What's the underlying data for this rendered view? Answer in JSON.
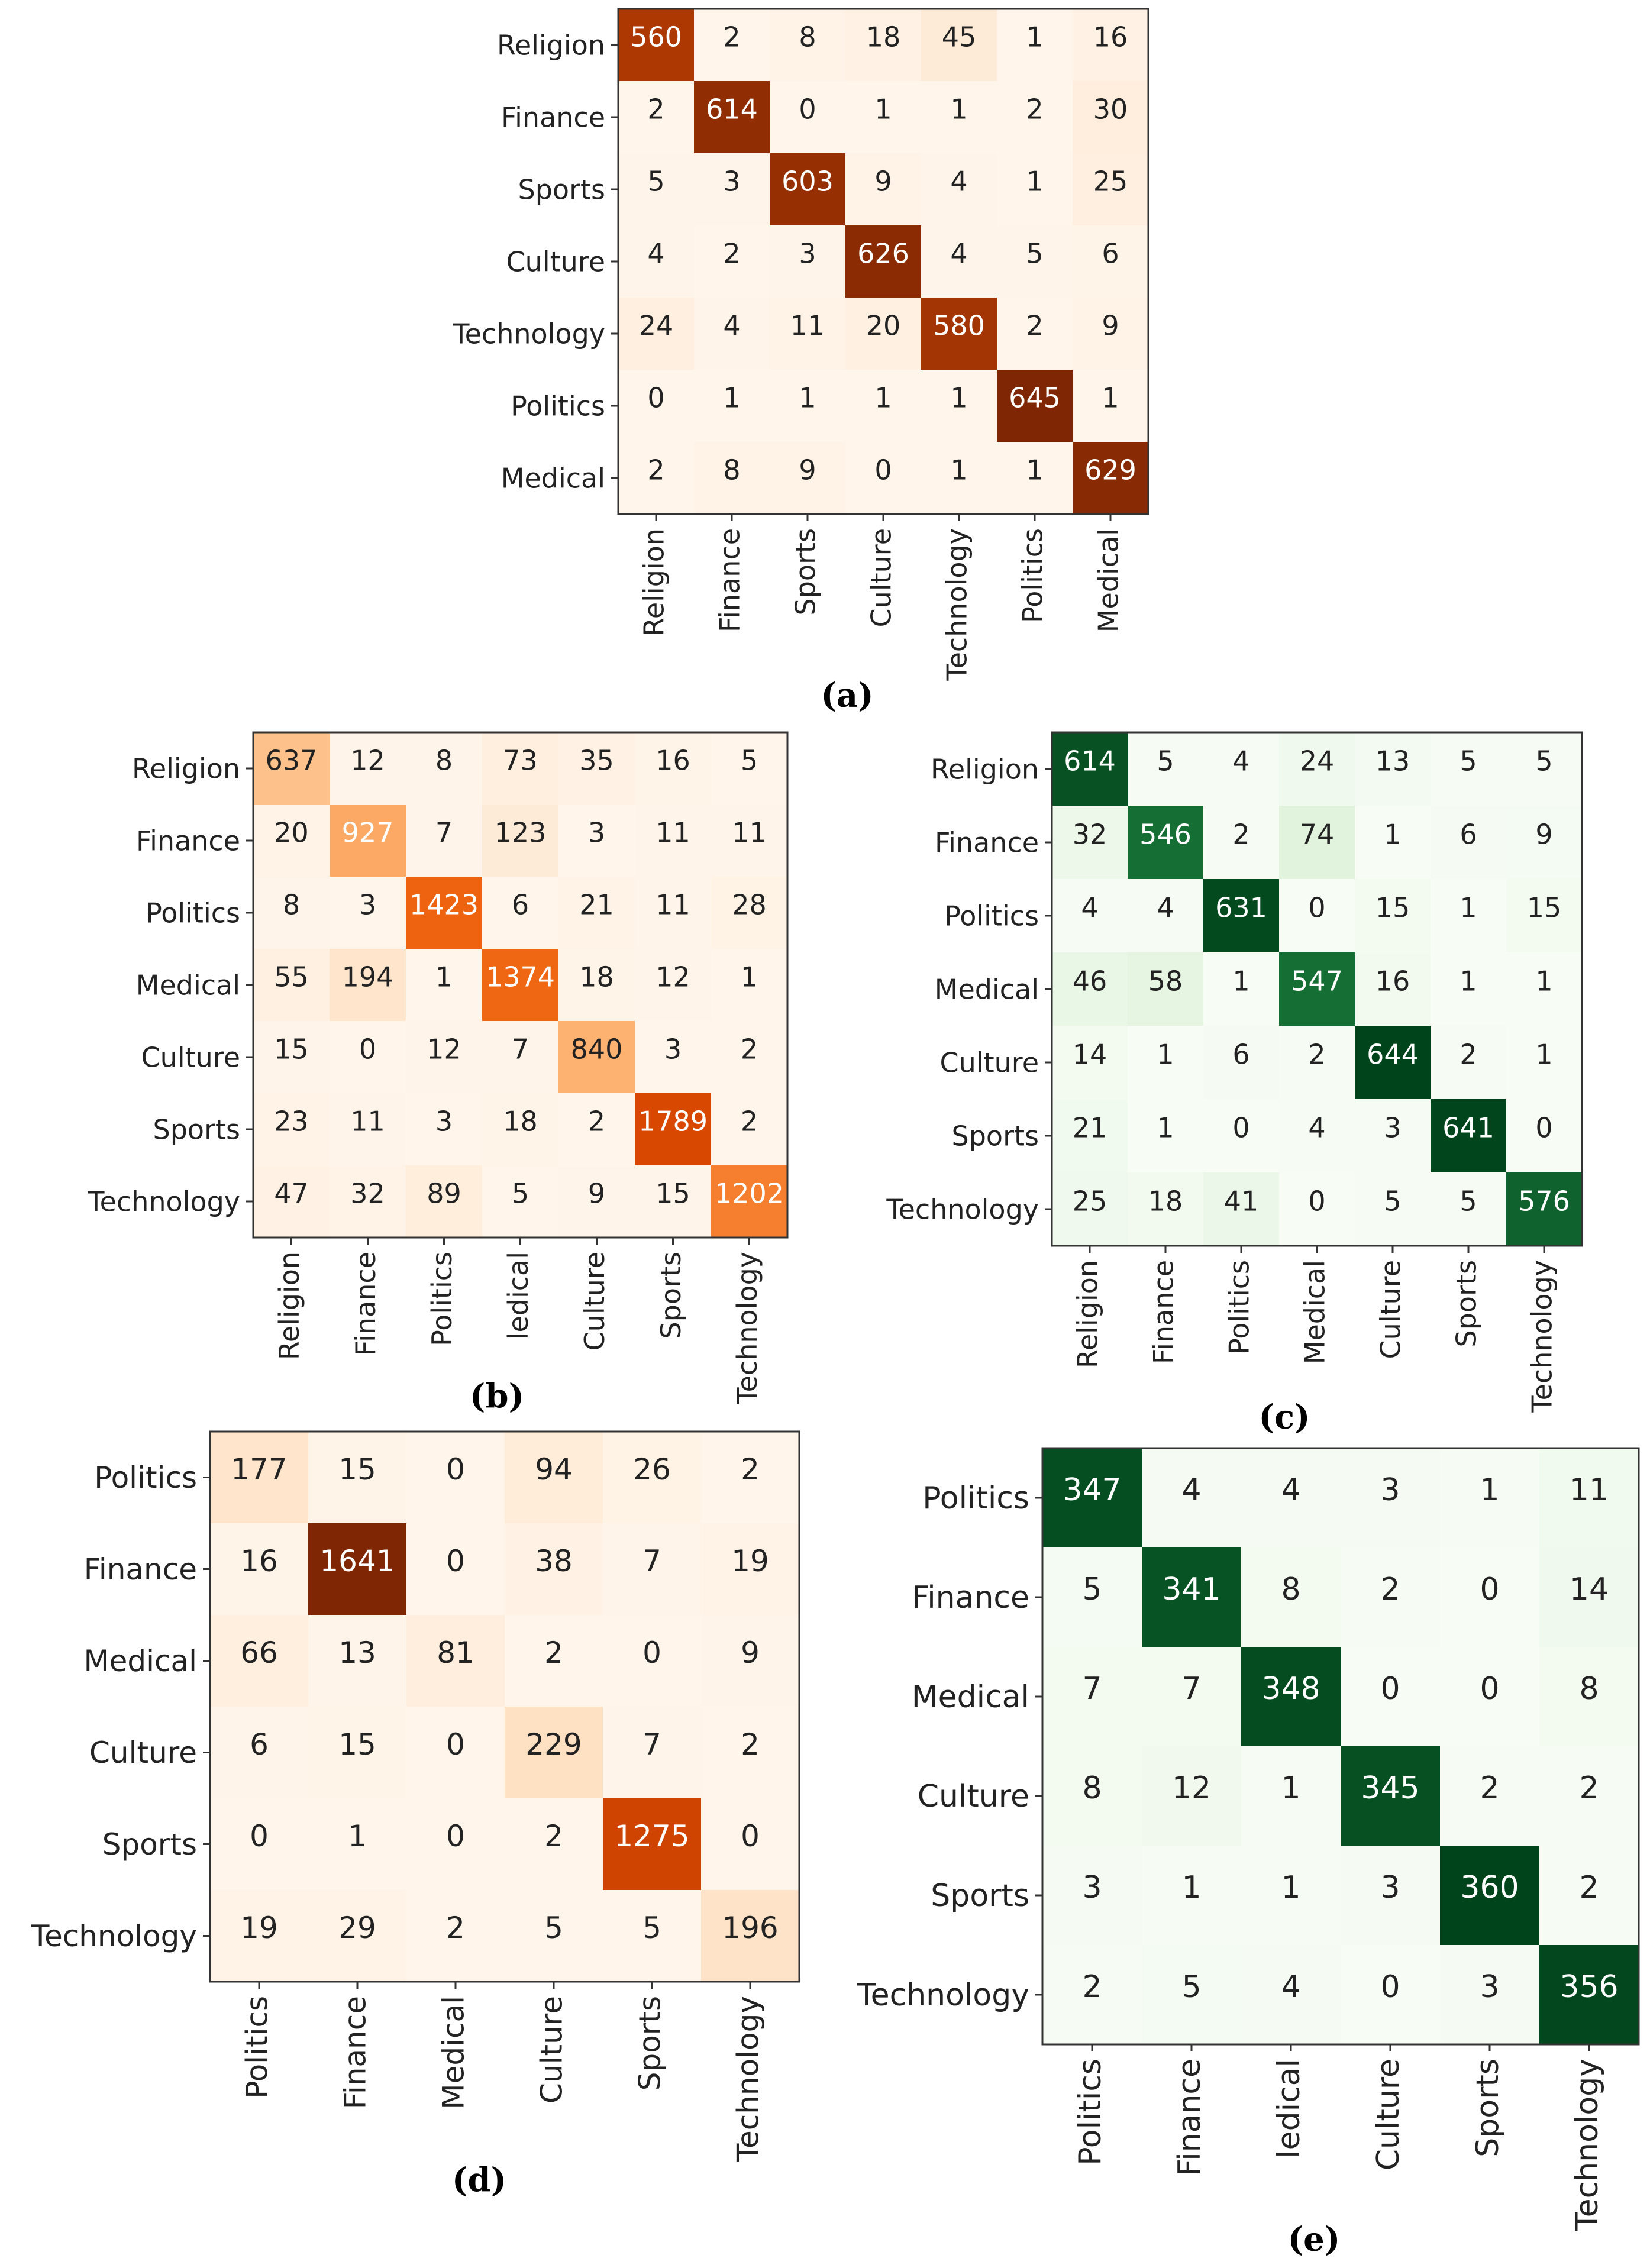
{
  "chart_data": [
    {
      "type": "heatmap",
      "caption": "(a)",
      "colormap": "orange-brown",
      "rows": [
        "Religion",
        "Finance",
        "Sports",
        "Culture",
        "Technology",
        "Politics",
        "Medical"
      ],
      "cols": [
        "Religion",
        "Finance",
        "Sports",
        "Culture",
        "Technology",
        "Politics",
        "Medical"
      ],
      "values": [
        [
          560,
          2,
          8,
          18,
          45,
          1,
          16
        ],
        [
          2,
          614,
          0,
          1,
          1,
          2,
          30
        ],
        [
          5,
          3,
          603,
          9,
          4,
          1,
          25
        ],
        [
          4,
          2,
          3,
          626,
          4,
          5,
          6
        ],
        [
          24,
          4,
          11,
          20,
          580,
          2,
          9
        ],
        [
          0,
          1,
          1,
          1,
          1,
          645,
          1
        ],
        [
          2,
          8,
          9,
          0,
          1,
          1,
          629
        ]
      ]
    },
    {
      "type": "heatmap",
      "caption": "(b)",
      "colormap": "orange",
      "rows": [
        "Religion",
        "Finance",
        "Politics",
        "Medical",
        "Culture",
        "Sports",
        "Technology"
      ],
      "cols": [
        "Religion",
        "Finance",
        "Politics",
        "ledical",
        "Culture",
        "Sports",
        "Technology"
      ],
      "values": [
        [
          637,
          12,
          8,
          73,
          35,
          16,
          5
        ],
        [
          20,
          927,
          7,
          123,
          3,
          11,
          11
        ],
        [
          8,
          3,
          1423,
          6,
          21,
          11,
          28
        ],
        [
          55,
          194,
          1,
          1374,
          18,
          12,
          1
        ],
        [
          15,
          0,
          12,
          7,
          840,
          3,
          2
        ],
        [
          23,
          11,
          3,
          18,
          2,
          1789,
          2
        ],
        [
          47,
          32,
          89,
          5,
          9,
          15,
          1202
        ]
      ]
    },
    {
      "type": "heatmap",
      "caption": "(c)",
      "colormap": "green",
      "rows": [
        "Religion",
        "Finance",
        "Politics",
        "Medical",
        "Culture",
        "Sports",
        "Technology"
      ],
      "cols": [
        "Religion",
        "Finance",
        "Politics",
        "Medical",
        "Culture",
        "Sports",
        "Technology"
      ],
      "values": [
        [
          614,
          5,
          4,
          24,
          13,
          5,
          5
        ],
        [
          32,
          546,
          2,
          74,
          1,
          6,
          9
        ],
        [
          4,
          4,
          631,
          0,
          15,
          1,
          15
        ],
        [
          46,
          58,
          1,
          547,
          16,
          1,
          1
        ],
        [
          14,
          1,
          6,
          2,
          644,
          2,
          1
        ],
        [
          21,
          1,
          0,
          4,
          3,
          641,
          0
        ],
        [
          25,
          18,
          41,
          0,
          5,
          5,
          576
        ]
      ]
    },
    {
      "type": "heatmap",
      "caption": "(d)",
      "colormap": "orange-brown",
      "rows": [
        "Politics",
        "Finance",
        "Medical",
        "Culture",
        "Sports",
        "Technology"
      ],
      "cols": [
        "Politics",
        "Finance",
        "Medical",
        "Culture",
        "Sports",
        "Technology"
      ],
      "values": [
        [
          177,
          15,
          0,
          94,
          26,
          2
        ],
        [
          16,
          1641,
          0,
          38,
          7,
          19
        ],
        [
          66,
          13,
          81,
          2,
          0,
          9
        ],
        [
          6,
          15,
          0,
          229,
          7,
          2
        ],
        [
          0,
          1,
          0,
          2,
          1275,
          0
        ],
        [
          19,
          29,
          2,
          5,
          5,
          196
        ]
      ]
    },
    {
      "type": "heatmap",
      "caption": "(e)",
      "colormap": "green",
      "rows": [
        "Politics",
        "Finance",
        "Medical",
        "Culture",
        "Sports",
        "Technology"
      ],
      "cols": [
        "Politics",
        "Finance",
        "ledical",
        "Culture",
        "Sports",
        "Technology"
      ],
      "values": [
        [
          347,
          4,
          4,
          3,
          1,
          11
        ],
        [
          5,
          341,
          8,
          2,
          0,
          14
        ],
        [
          7,
          7,
          348,
          0,
          0,
          8
        ],
        [
          8,
          12,
          1,
          345,
          2,
          2
        ],
        [
          3,
          1,
          1,
          3,
          360,
          2
        ],
        [
          2,
          5,
          4,
          0,
          3,
          356
        ]
      ]
    }
  ]
}
